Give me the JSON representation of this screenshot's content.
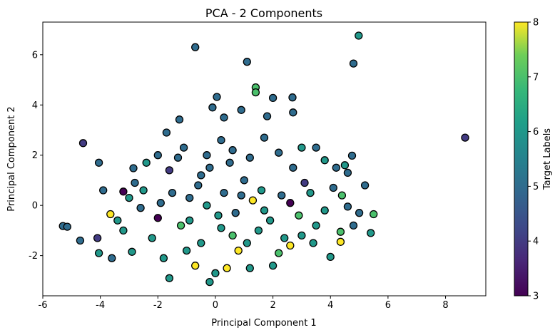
{
  "chart_data": {
    "type": "scatter",
    "title": "PCA - 2 Components",
    "xlabel": "Principal Component 1",
    "ylabel": "Principal Component 2",
    "xlim": [
      -6,
      9.4
    ],
    "ylim": [
      -3.6,
      7.3
    ],
    "xticks": [
      -6,
      -4,
      -2,
      0,
      2,
      4,
      6,
      8
    ],
    "yticks": [
      -2,
      0,
      2,
      4,
      6
    ],
    "colorbar": {
      "label": "Target Labels",
      "min": 3,
      "max": 8,
      "ticks": [
        3,
        4,
        5,
        6,
        7,
        8
      ],
      "colormap": "viridis"
    },
    "grid": false,
    "points": [
      {
        "x": -0.7,
        "y": 6.3,
        "c": 5
      },
      {
        "x": 1.1,
        "y": 5.72,
        "c": 5
      },
      {
        "x": 4.8,
        "y": 5.65,
        "c": 5
      },
      {
        "x": 4.98,
        "y": 6.76,
        "c": 6
      },
      {
        "x": 8.68,
        "y": 2.7,
        "c": 4
      },
      {
        "x": 1.4,
        "y": 4.7,
        "c": 7
      },
      {
        "x": 1.4,
        "y": 4.5,
        "c": 7
      },
      {
        "x": 0.05,
        "y": 4.32,
        "c": 5
      },
      {
        "x": 2.0,
        "y": 4.28,
        "c": 5
      },
      {
        "x": 2.68,
        "y": 4.3,
        "c": 5
      },
      {
        "x": -0.1,
        "y": 3.9,
        "c": 5
      },
      {
        "x": 0.9,
        "y": 3.8,
        "c": 5
      },
      {
        "x": 2.7,
        "y": 3.7,
        "c": 5
      },
      {
        "x": 1.8,
        "y": 3.55,
        "c": 5
      },
      {
        "x": 0.3,
        "y": 3.5,
        "c": 5
      },
      {
        "x": -1.25,
        "y": 3.42,
        "c": 5
      },
      {
        "x": -4.6,
        "y": 2.48,
        "c": 4
      },
      {
        "x": -4.05,
        "y": 1.7,
        "c": 5
      },
      {
        "x": -3.9,
        "y": 0.6,
        "c": 5
      },
      {
        "x": -5.3,
        "y": -0.82,
        "c": 5
      },
      {
        "x": -5.15,
        "y": -0.85,
        "c": 5
      },
      {
        "x": -4.7,
        "y": -1.4,
        "c": 5
      },
      {
        "x": -4.1,
        "y": -1.3,
        "c": 4
      },
      {
        "x": -4.05,
        "y": -1.9,
        "c": 6
      },
      {
        "x": -3.6,
        "y": -2.1,
        "c": 5
      },
      {
        "x": -3.65,
        "y": -0.35,
        "c": 8
      },
      {
        "x": -3.2,
        "y": 0.55,
        "c": 3
      },
      {
        "x": -2.85,
        "y": 1.48,
        "c": 5
      },
      {
        "x": -2.0,
        "y": 2.0,
        "c": 5
      },
      {
        "x": -1.7,
        "y": 2.9,
        "c": 5
      },
      {
        "x": -1.1,
        "y": 2.3,
        "c": 5
      },
      {
        "x": -1.6,
        "y": 1.4,
        "c": 4
      },
      {
        "x": -2.4,
        "y": 1.7,
        "c": 6
      },
      {
        "x": -2.5,
        "y": 0.6,
        "c": 6
      },
      {
        "x": -3.0,
        "y": 0.3,
        "c": 6
      },
      {
        "x": -3.4,
        "y": -0.6,
        "c": 6
      },
      {
        "x": -3.2,
        "y": -1.0,
        "c": 6
      },
      {
        "x": -2.9,
        "y": -1.85,
        "c": 6
      },
      {
        "x": -2.0,
        "y": -0.5,
        "c": 3
      },
      {
        "x": -1.6,
        "y": -2.9,
        "c": 6
      },
      {
        "x": -2.6,
        "y": -0.1,
        "c": 5
      },
      {
        "x": -1.2,
        "y": -0.8,
        "c": 7
      },
      {
        "x": -0.9,
        "y": 0.3,
        "c": 5
      },
      {
        "x": -0.5,
        "y": 1.2,
        "c": 5
      },
      {
        "x": -0.3,
        "y": 2.0,
        "c": 5
      },
      {
        "x": 0.2,
        "y": 2.6,
        "c": 5
      },
      {
        "x": 0.6,
        "y": 2.2,
        "c": 5
      },
      {
        "x": 1.2,
        "y": 1.9,
        "c": 5
      },
      {
        "x": 1.7,
        "y": 2.7,
        "c": 5
      },
      {
        "x": 2.2,
        "y": 2.1,
        "c": 5
      },
      {
        "x": 2.7,
        "y": 1.5,
        "c": 5
      },
      {
        "x": 3.0,
        "y": 2.3,
        "c": 6
      },
      {
        "x": 3.5,
        "y": 2.3,
        "c": 5
      },
      {
        "x": 3.8,
        "y": 1.8,
        "c": 6
      },
      {
        "x": 4.2,
        "y": 1.5,
        "c": 5
      },
      {
        "x": 4.5,
        "y": 1.6,
        "c": 6
      },
      {
        "x": 4.75,
        "y": 1.98,
        "c": 5
      },
      {
        "x": 4.6,
        "y": 1.3,
        "c": 5
      },
      {
        "x": 3.1,
        "y": 0.9,
        "c": 4
      },
      {
        "x": 3.3,
        "y": 0.5,
        "c": 6
      },
      {
        "x": 4.1,
        "y": 0.7,
        "c": 5
      },
      {
        "x": 4.4,
        "y": 0.4,
        "c": 7
      },
      {
        "x": 4.6,
        "y": -0.05,
        "c": 5
      },
      {
        "x": 5.0,
        "y": -0.3,
        "c": 5
      },
      {
        "x": 5.2,
        "y": 0.8,
        "c": 5
      },
      {
        "x": 5.5,
        "y": -0.35,
        "c": 7
      },
      {
        "x": 5.4,
        "y": -1.1,
        "c": 6
      },
      {
        "x": 4.8,
        "y": -0.8,
        "c": 5
      },
      {
        "x": 4.35,
        "y": -1.05,
        "c": 7
      },
      {
        "x": 4.35,
        "y": -1.45,
        "c": 8
      },
      {
        "x": 4.0,
        "y": -2.05,
        "c": 6
      },
      {
        "x": 3.5,
        "y": -0.8,
        "c": 6
      },
      {
        "x": 3.0,
        "y": -1.2,
        "c": 6
      },
      {
        "x": 2.6,
        "y": -1.6,
        "c": 8
      },
      {
        "x": 2.2,
        "y": -1.9,
        "c": 7
      },
      {
        "x": 2.4,
        "y": -1.3,
        "c": 6
      },
      {
        "x": 1.9,
        "y": -0.6,
        "c": 6
      },
      {
        "x": 2.6,
        "y": 0.1,
        "c": 3
      },
      {
        "x": 2.0,
        "y": -2.4,
        "c": 6
      },
      {
        "x": 1.2,
        "y": -2.5,
        "c": 6
      },
      {
        "x": 0.8,
        "y": -1.8,
        "c": 8
      },
      {
        "x": 0.4,
        "y": -2.5,
        "c": 8
      },
      {
        "x": 0.0,
        "y": -2.7,
        "c": 6
      },
      {
        "x": -0.2,
        "y": -3.05,
        "c": 6
      },
      {
        "x": -0.7,
        "y": -2.4,
        "c": 8
      },
      {
        "x": -0.5,
        "y": -1.5,
        "c": 6
      },
      {
        "x": 0.2,
        "y": -0.9,
        "c": 6
      },
      {
        "x": 0.7,
        "y": -0.3,
        "c": 5
      },
      {
        "x": 1.3,
        "y": 0.2,
        "c": 8
      },
      {
        "x": 1.6,
        "y": 0.6,
        "c": 6
      },
      {
        "x": 1.0,
        "y": 1.0,
        "c": 5
      },
      {
        "x": 0.3,
        "y": 0.5,
        "c": 5
      },
      {
        "x": -0.3,
        "y": 0.0,
        "c": 6
      },
      {
        "x": -1.5,
        "y": 0.5,
        "c": 5
      },
      {
        "x": -2.2,
        "y": -1.3,
        "c": 6
      },
      {
        "x": -1.8,
        "y": -2.1,
        "c": 6
      },
      {
        "x": -1.0,
        "y": -1.8,
        "c": 6
      },
      {
        "x": 0.6,
        "y": -1.2,
        "c": 7
      },
      {
        "x": 1.5,
        "y": -1.0,
        "c": 6
      },
      {
        "x": 2.9,
        "y": -0.4,
        "c": 7
      },
      {
        "x": 3.8,
        "y": -0.2,
        "c": 6
      },
      {
        "x": -0.2,
        "y": 1.5,
        "c": 5
      },
      {
        "x": 0.5,
        "y": 1.7,
        "c": 5
      },
      {
        "x": -1.3,
        "y": 1.9,
        "c": 5
      },
      {
        "x": -2.8,
        "y": 0.9,
        "c": 5
      },
      {
        "x": 3.4,
        "y": -1.5,
        "c": 6
      },
      {
        "x": -0.9,
        "y": -0.6,
        "c": 6
      },
      {
        "x": 1.1,
        "y": -1.5,
        "c": 6
      },
      {
        "x": 2.3,
        "y": 0.4,
        "c": 5
      },
      {
        "x": -1.9,
        "y": 0.1,
        "c": 5
      },
      {
        "x": -0.6,
        "y": 0.8,
        "c": 5
      },
      {
        "x": 0.9,
        "y": 0.4,
        "c": 5
      },
      {
        "x": 1.7,
        "y": -0.2,
        "c": 6
      },
      {
        "x": 0.1,
        "y": -0.4,
        "c": 6
      }
    ]
  }
}
